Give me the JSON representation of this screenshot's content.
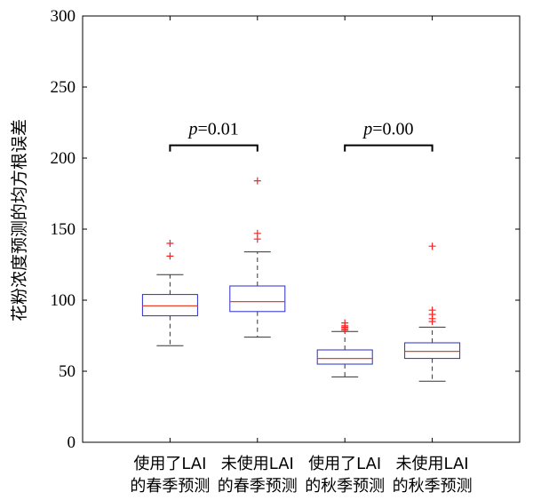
{
  "chart_data": {
    "type": "boxplot",
    "ylabel": "花粉浓度预测的均方根误差",
    "ylim": [
      0,
      300
    ],
    "yticks": [
      0,
      50,
      100,
      150,
      200,
      250,
      300
    ],
    "categories": [
      [
        "使用了LAI",
        "的春季预测"
      ],
      [
        "未使用LAI",
        "的春季预测"
      ],
      [
        "使用了LAI",
        "的秋季预测"
      ],
      [
        "未使用LAI",
        "的秋季预测"
      ]
    ],
    "boxes": [
      {
        "whisker_low": 68,
        "q1": 89,
        "median": 96,
        "q3": 104,
        "whisker_high": 118,
        "outliers": [
          131,
          140
        ]
      },
      {
        "whisker_low": 74,
        "q1": 92,
        "median": 99,
        "q3": 110,
        "whisker_high": 134,
        "outliers": [
          143,
          147,
          184
        ]
      },
      {
        "whisker_low": 46,
        "q1": 55,
        "median": 59,
        "q3": 65,
        "whisker_high": 78,
        "outliers": [
          79,
          80,
          81,
          82,
          84
        ]
      },
      {
        "whisker_low": 43,
        "q1": 59,
        "median": 64,
        "q3": 70,
        "whisker_high": 81,
        "outliers": [
          85,
          87,
          90,
          93,
          138
        ]
      }
    ],
    "significance": [
      {
        "from": 0,
        "to": 1,
        "y": 209,
        "label_italic": "p",
        "label_rest": "=0.01"
      },
      {
        "from": 2,
        "to": 3,
        "y": 209,
        "label_italic": "p",
        "label_rest": "=0.00"
      }
    ],
    "colors": {
      "box": "#2b2bcc",
      "median": "#e8432a",
      "whisker": "#333333",
      "outlier": "#ff2222",
      "axis": "#000000"
    },
    "grid": false
  }
}
